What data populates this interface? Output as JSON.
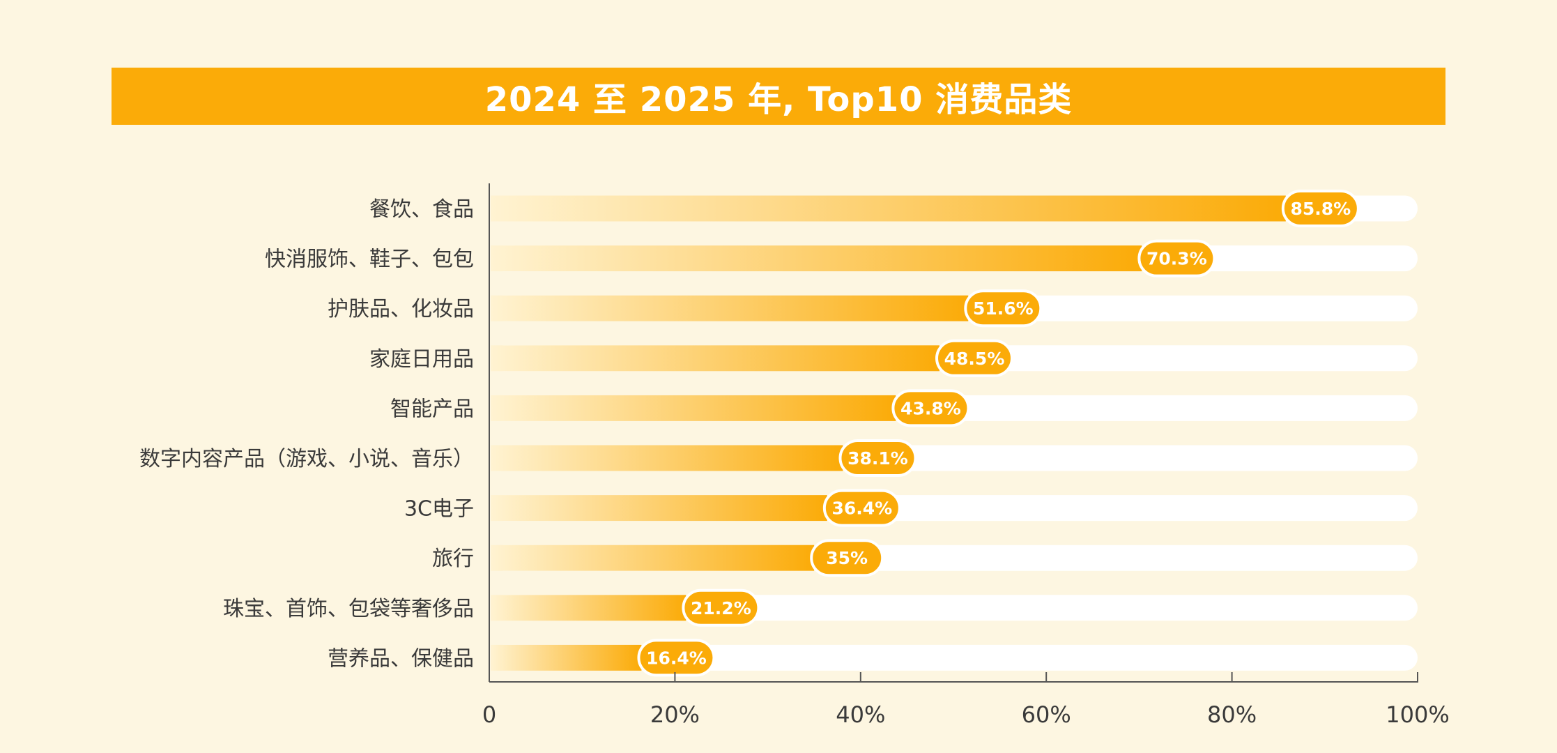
{
  "title": "2024 至 2025 年, Top10 消费品类",
  "colors": {
    "background": "#fdf6e1",
    "banner": "#fbab08",
    "bar_start": "#fff3d2",
    "bar_end": "#fbab08",
    "track": "#ffffff",
    "axis": "#555555"
  },
  "chart_data": {
    "type": "bar",
    "orientation": "horizontal",
    "title": "2024 至 2025 年, Top10 消费品类",
    "xlabel": "",
    "ylabel": "",
    "xlim": [
      0,
      100
    ],
    "grid": false,
    "categories": [
      "餐饮、食品",
      "快消服饰、鞋子、包包",
      "护肤品、化妆品",
      "家庭日用品",
      "智能产品",
      "数字内容产品（游戏、小说、音乐）",
      "3C电子",
      "旅行",
      "珠宝、首饰、包袋等奢侈品",
      "营养品、保健品"
    ],
    "values": [
      85.8,
      70.3,
      51.6,
      48.5,
      43.8,
      38.1,
      36.4,
      35,
      21.2,
      16.4
    ],
    "value_labels": [
      "85.8%",
      "70.3%",
      "51.6%",
      "48.5%",
      "43.8%",
      "38.1%",
      "36.4%",
      "35%",
      "21.2%",
      "16.4%"
    ],
    "x_ticks": [
      {
        "value": 0,
        "label": "0"
      },
      {
        "value": 20,
        "label": "20%"
      },
      {
        "value": 40,
        "label": "40%"
      },
      {
        "value": 60,
        "label": "60%"
      },
      {
        "value": 80,
        "label": "80%"
      },
      {
        "value": 100,
        "label": "100%"
      }
    ]
  }
}
